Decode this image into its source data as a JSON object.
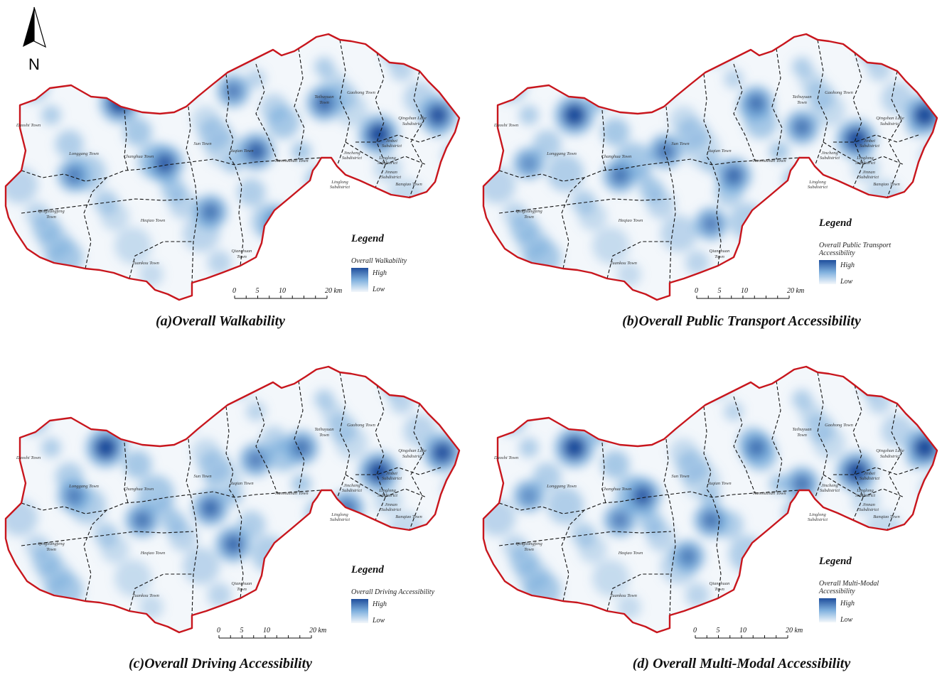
{
  "north_arrow": {
    "label": "N"
  },
  "scale_bar": {
    "ticks": [
      "0",
      "5",
      "10",
      "20 km"
    ]
  },
  "legend": {
    "title": "Legend",
    "high": "High",
    "low": "Low"
  },
  "colors": {
    "boundary": "#c8161d",
    "district_lines": "#111111",
    "high": "#1f4e9c",
    "mid": "#6fa6d8",
    "low": "#f3f7fb"
  },
  "place_names": {
    "daoshi": "Daoshi Town",
    "longgang": "Longgang Town",
    "changhua": "Changhua Town",
    "sun": "Sun Town",
    "yuqian": "Yuqian Town",
    "taihuyuan_1": "Taihuyuan",
    "taihuyuan_2": "Town",
    "gaohong": "Gaohong Town",
    "qingshan_1": "Qingshan Lake",
    "qingshan_2": "Subdistrict",
    "jinbei_1": "Jinbei",
    "jinbei_2": "Subdistrict",
    "jincheng_1": "Jincheng",
    "jincheng_2": "Subdistrict",
    "linglong_c_1": "Linglong",
    "linglong_c_2": "Subdistrict",
    "jinnan_1": "Jinnan",
    "jinnan_2": "Subdistrict",
    "tianmushan": "Tianmushan Town",
    "linglong_s_1": "Linglong",
    "linglong_s_2": "Subdistrict",
    "banqiao": "Banqiao Town",
    "qinglianfeng_1": "Qingliangfeng",
    "qinglianfeng_2": "Town",
    "heqiao": "Heqiao Town",
    "qianchuan_1": "Qianchuan",
    "qianchuan_2": "Town",
    "tuankou": "Tuankou Town"
  },
  "panels": [
    {
      "id": "a",
      "title": "(a)Overall Walkability",
      "legend_sub": [
        "Overall Walkability"
      ],
      "hotspots": [
        [
          0.25,
          0.25,
          1
        ],
        [
          0.55,
          0.45,
          0.8
        ],
        [
          0.82,
          0.38,
          1
        ],
        [
          0.95,
          0.3,
          0.9
        ],
        [
          0.35,
          0.5,
          0.8
        ],
        [
          0.6,
          0.75,
          0.7
        ],
        [
          0.45,
          0.7,
          0.6
        ],
        [
          0.7,
          0.25,
          0.7
        ],
        [
          0.15,
          0.55,
          0.5
        ],
        [
          0.5,
          0.2,
          0.5
        ]
      ]
    },
    {
      "id": "b",
      "title": "(b)Overall Public Transport Accessibility",
      "legend_sub": [
        "Overall Public Transport",
        "Accessibility"
      ],
      "hotspots": [
        [
          0.2,
          0.3,
          1
        ],
        [
          0.82,
          0.4,
          1
        ],
        [
          0.97,
          0.3,
          1
        ],
        [
          0.55,
          0.55,
          0.7
        ],
        [
          0.4,
          0.45,
          0.6
        ],
        [
          0.3,
          0.55,
          0.6
        ],
        [
          0.6,
          0.25,
          0.6
        ],
        [
          0.7,
          0.35,
          0.6
        ],
        [
          0.5,
          0.75,
          0.5
        ],
        [
          0.1,
          0.5,
          0.4
        ]
      ]
    },
    {
      "id": "c",
      "title": "(c)Overall Driving Accessibility",
      "legend_sub": [
        "Overall Driving Accessibility"
      ],
      "hotspots": [
        [
          0.22,
          0.3,
          1
        ],
        [
          0.82,
          0.4,
          1
        ],
        [
          0.96,
          0.32,
          0.9
        ],
        [
          0.45,
          0.55,
          0.7
        ],
        [
          0.5,
          0.7,
          0.7
        ],
        [
          0.3,
          0.6,
          0.6
        ],
        [
          0.65,
          0.3,
          0.6
        ],
        [
          0.75,
          0.55,
          0.6
        ],
        [
          0.15,
          0.5,
          0.5
        ],
        [
          0.55,
          0.35,
          0.5
        ]
      ]
    },
    {
      "id": "d",
      "title": "(d) Overall Multi-Modal Accessibility",
      "legend_sub": [
        "Overall Multi-Modal",
        "Accessibility"
      ],
      "hotspots": [
        [
          0.2,
          0.3,
          1
        ],
        [
          0.82,
          0.4,
          1
        ],
        [
          0.97,
          0.3,
          1
        ],
        [
          0.35,
          0.5,
          0.8
        ],
        [
          0.5,
          0.6,
          0.6
        ],
        [
          0.6,
          0.3,
          0.6
        ],
        [
          0.7,
          0.45,
          0.6
        ],
        [
          0.3,
          0.6,
          0.5
        ],
        [
          0.45,
          0.75,
          0.5
        ],
        [
          0.1,
          0.5,
          0.4
        ]
      ]
    }
  ]
}
